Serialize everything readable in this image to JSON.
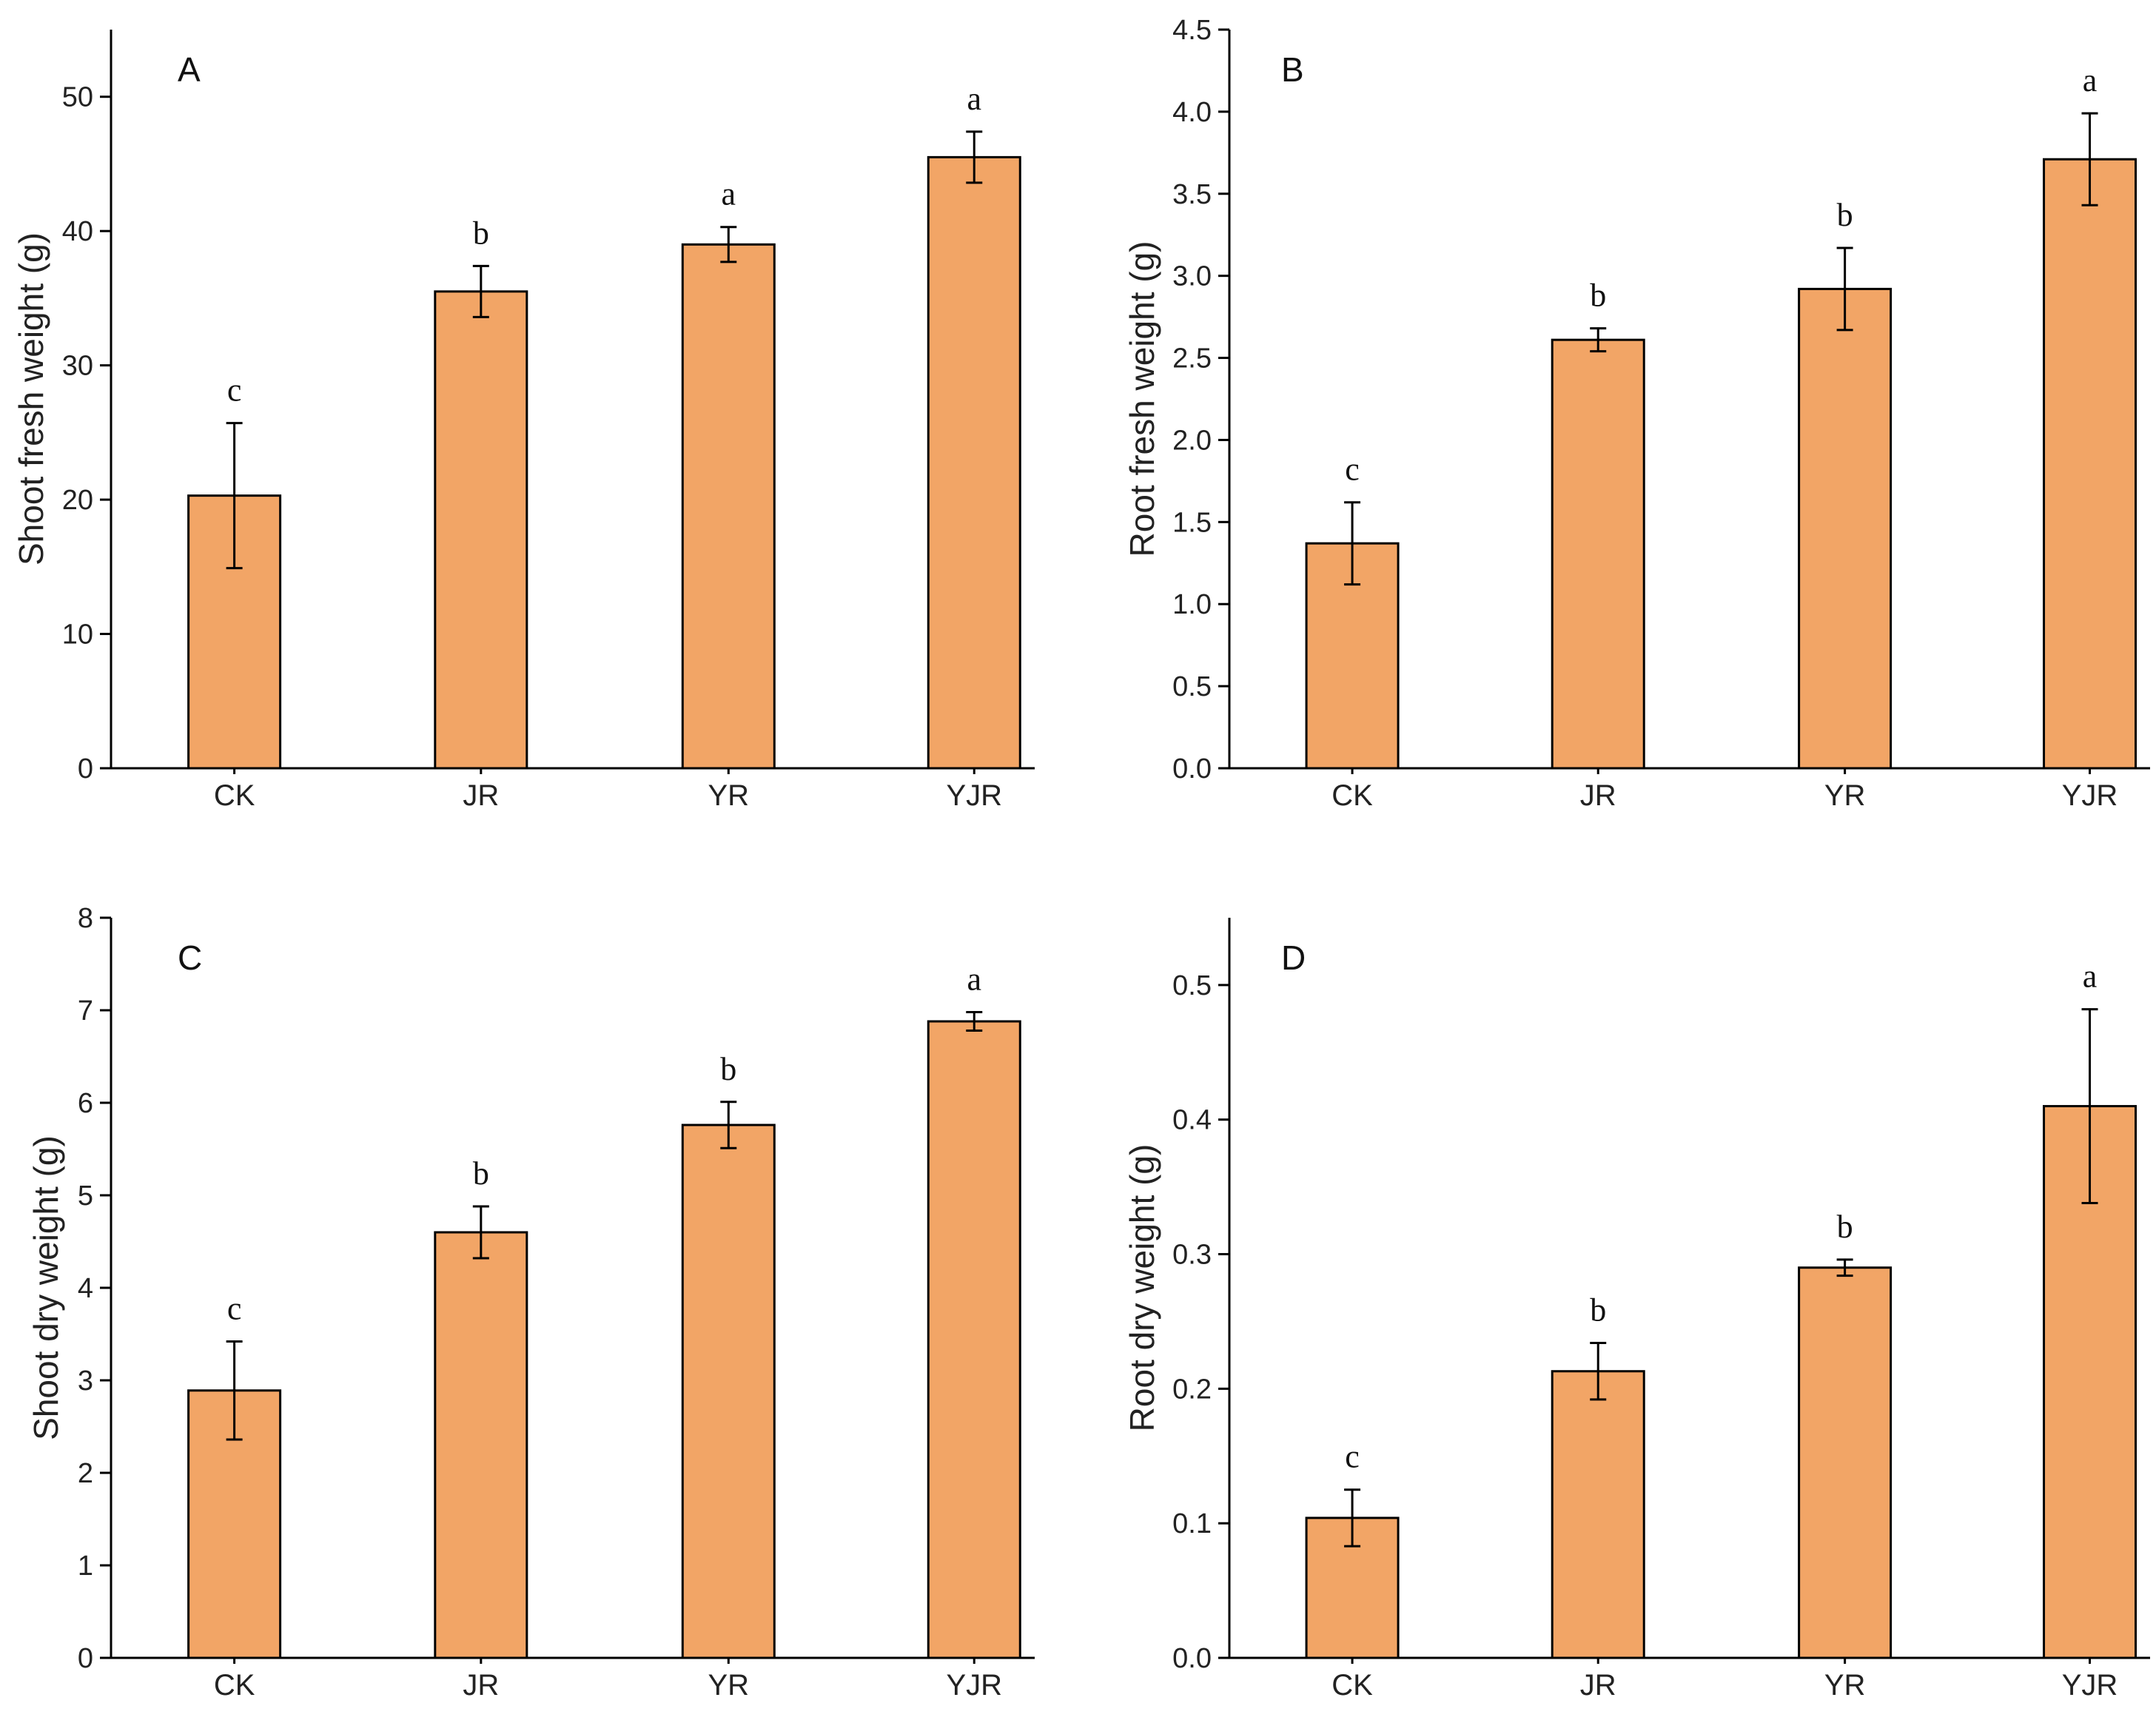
{
  "chart_data": [
    {
      "panel": "A",
      "type": "bar",
      "ylabel": "Shoot fresh weight (g)",
      "ylim": [
        0,
        55
      ],
      "yticks": [
        0,
        10,
        20,
        30,
        40,
        50
      ],
      "ytick_labels": [
        "0",
        "10",
        "20",
        "30",
        "40",
        "50"
      ],
      "categories": [
        "CK",
        "JR",
        "YR",
        "YJR"
      ],
      "values": [
        20.3,
        35.5,
        39.0,
        45.5
      ],
      "errors": [
        5.4,
        1.9,
        1.3,
        1.9
      ],
      "significance": [
        "c",
        "b",
        "a",
        "a"
      ],
      "bar_color": "#f2a566"
    },
    {
      "panel": "B",
      "type": "bar",
      "ylabel": "Root fresh weight (g)",
      "ylim": [
        0,
        4.5
      ],
      "yticks": [
        0,
        0.5,
        1,
        1.5,
        2,
        2.5,
        3,
        3.5,
        4,
        4.5
      ],
      "ytick_labels": [
        "0.0",
        "0.5",
        "1.0",
        "1.5",
        "2.0",
        "2.5",
        "3.0",
        "3.5",
        "4.0",
        "4.5"
      ],
      "categories": [
        "CK",
        "JR",
        "YR",
        "YJR"
      ],
      "values": [
        1.37,
        2.61,
        2.92,
        3.71
      ],
      "errors": [
        0.25,
        0.07,
        0.25,
        0.28
      ],
      "significance": [
        "c",
        "b",
        "b",
        "a"
      ],
      "bar_color": "#f2a566"
    },
    {
      "panel": "C",
      "type": "bar",
      "ylabel": "Shoot dry weight (g)",
      "ylim": [
        0,
        8
      ],
      "yticks": [
        0,
        1,
        2,
        3,
        4,
        5,
        6,
        7,
        8
      ],
      "ytick_labels": [
        "0",
        "1",
        "2",
        "3",
        "4",
        "5",
        "6",
        "7",
        "8"
      ],
      "categories": [
        "CK",
        "JR",
        "YR",
        "YJR"
      ],
      "values": [
        2.89,
        4.6,
        5.76,
        6.88
      ],
      "errors": [
        0.53,
        0.28,
        0.25,
        0.1
      ],
      "significance": [
        "c",
        "b",
        "b",
        "a"
      ],
      "bar_color": "#f2a566"
    },
    {
      "panel": "D",
      "type": "bar",
      "ylabel": "Root dry weight (g)",
      "ylim": [
        0,
        0.55
      ],
      "yticks": [
        0,
        0.1,
        0.2,
        0.3,
        0.4,
        0.5
      ],
      "ytick_labels": [
        "0.0",
        "0.1",
        "0.2",
        "0.3",
        "0.4",
        "0.5"
      ],
      "categories": [
        "CK",
        "JR",
        "YR",
        "YJR"
      ],
      "values": [
        0.104,
        0.213,
        0.29,
        0.41
      ],
      "errors": [
        0.021,
        0.021,
        0.006,
        0.072
      ],
      "significance": [
        "c",
        "b",
        "b",
        "a"
      ],
      "bar_color": "#f2a566"
    }
  ]
}
